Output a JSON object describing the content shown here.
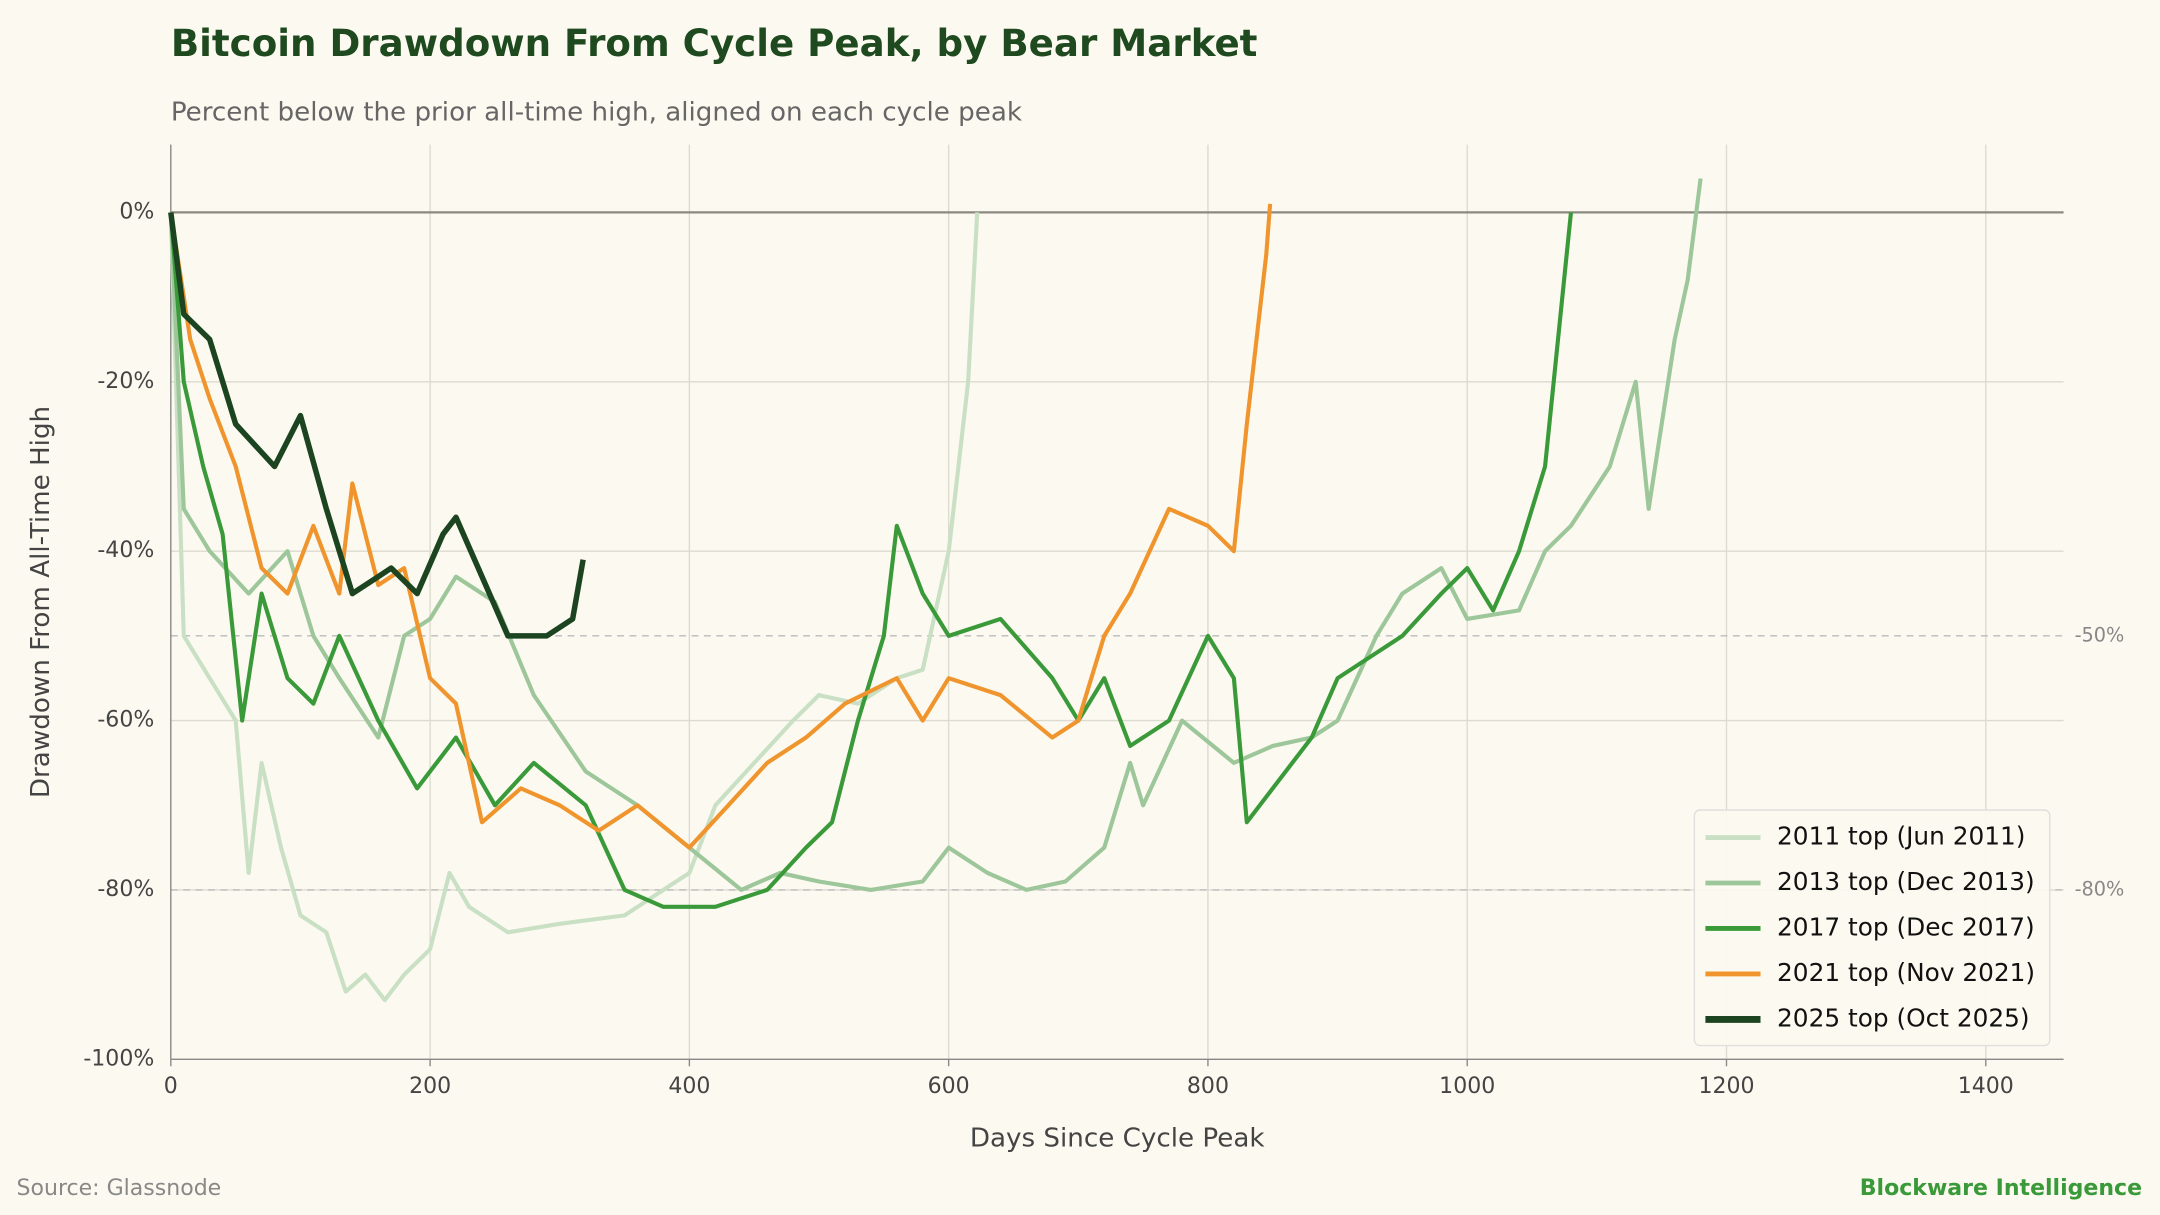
{
  "chart_data": {
    "type": "line",
    "title": "Bitcoin Drawdown From Cycle Peak, by Bear Market",
    "subtitle": "Percent below the prior all-time high, aligned on each cycle peak",
    "xlabel": "Days Since Cycle Peak",
    "ylabel": "Drawdown From All-Time High",
    "source": "Source: Glassnode",
    "brand": "Blockware Intelligence",
    "xlim": [
      0,
      1460
    ],
    "ylim": [
      -100,
      8
    ],
    "xticks": [
      0,
      200,
      400,
      600,
      800,
      1000,
      1200,
      1400
    ],
    "yticks": [
      {
        "value": -100,
        "label": "-100%"
      },
      {
        "value": -80,
        "label": "-80%"
      },
      {
        "value": -60,
        "label": "-60%"
      },
      {
        "value": -40,
        "label": "-40%"
      },
      {
        "value": -20,
        "label": "-20%"
      },
      {
        "value": 0,
        "label": "0%"
      }
    ],
    "grid": true,
    "legend": "lower right",
    "ref_lines": [
      {
        "value": -50,
        "label": "-50%"
      },
      {
        "value": -80,
        "label": "-80%"
      }
    ],
    "series": [
      {
        "name": "2011 top (Jun 2011)",
        "color": "#c9e0c5",
        "x": [
          0,
          10,
          30,
          50,
          60,
          70,
          85,
          100,
          120,
          135,
          150,
          165,
          180,
          200,
          215,
          230,
          260,
          300,
          350,
          380,
          400,
          420,
          450,
          480,
          500,
          530,
          560,
          580,
          600,
          615,
          622
        ],
        "values": [
          0,
          -50,
          -55,
          -60,
          -78,
          -65,
          -75,
          -83,
          -85,
          -92,
          -90,
          -93,
          -90,
          -87,
          -78,
          -82,
          -85,
          -84,
          -83,
          -80,
          -78,
          -70,
          -65,
          -60,
          -57,
          -58,
          -55,
          -54,
          -40,
          -20,
          0
        ]
      },
      {
        "name": "2013 top (Dec 2013)",
        "color": "#9dc79a",
        "x": [
          0,
          10,
          30,
          60,
          90,
          110,
          130,
          160,
          180,
          200,
          220,
          250,
          280,
          320,
          360,
          400,
          440,
          470,
          500,
          540,
          580,
          600,
          630,
          660,
          690,
          720,
          740,
          750,
          780,
          820,
          850,
          880,
          900,
          930,
          950,
          980,
          1000,
          1040,
          1060,
          1080,
          1110,
          1130,
          1140,
          1160,
          1170,
          1180
        ],
        "values": [
          0,
          -35,
          -40,
          -45,
          -40,
          -50,
          -55,
          -62,
          -50,
          -48,
          -43,
          -46,
          -57,
          -66,
          -70,
          -75,
          -80,
          -78,
          -79,
          -80,
          -79,
          -75,
          -78,
          -80,
          -79,
          -75,
          -65,
          -70,
          -60,
          -65,
          -63,
          -62,
          -60,
          -50,
          -45,
          -42,
          -48,
          -47,
          -40,
          -37,
          -30,
          -20,
          -35,
          -15,
          -8,
          4
        ]
      },
      {
        "name": "2017 top (Dec 2017)",
        "color": "#3a9a3a",
        "x": [
          0,
          10,
          25,
          40,
          55,
          70,
          90,
          110,
          130,
          160,
          190,
          220,
          250,
          280,
          320,
          350,
          380,
          420,
          460,
          490,
          510,
          530,
          550,
          560,
          580,
          600,
          640,
          680,
          700,
          720,
          740,
          770,
          800,
          820,
          830,
          850,
          880,
          900,
          930,
          950,
          980,
          1000,
          1020,
          1040,
          1060,
          1070,
          1080
        ],
        "values": [
          0,
          -20,
          -30,
          -38,
          -60,
          -45,
          -55,
          -58,
          -50,
          -60,
          -68,
          -62,
          -70,
          -65,
          -70,
          -80,
          -82,
          -82,
          -80,
          -75,
          -72,
          -60,
          -50,
          -37,
          -45,
          -50,
          -48,
          -55,
          -60,
          -55,
          -63,
          -60,
          -50,
          -55,
          -72,
          -68,
          -62,
          -55,
          -52,
          -50,
          -45,
          -42,
          -47,
          -40,
          -30,
          -15,
          0
        ]
      },
      {
        "name": "2021 top (Nov 2021)",
        "color": "#f0952e",
        "x": [
          0,
          15,
          30,
          50,
          70,
          90,
          110,
          130,
          140,
          160,
          180,
          200,
          220,
          240,
          270,
          300,
          330,
          360,
          400,
          430,
          460,
          490,
          520,
          560,
          580,
          600,
          640,
          680,
          700,
          720,
          740,
          770,
          800,
          820,
          830,
          845,
          848
        ],
        "values": [
          0,
          -15,
          -22,
          -30,
          -42,
          -45,
          -37,
          -45,
          -32,
          -44,
          -42,
          -55,
          -58,
          -72,
          -68,
          -70,
          -73,
          -70,
          -75,
          -70,
          -65,
          -62,
          -58,
          -55,
          -60,
          -55,
          -57,
          -62,
          -60,
          -50,
          -45,
          -35,
          -37,
          -40,
          -25,
          -5,
          1
        ]
      },
      {
        "name": "2025 top (Oct 2025)",
        "color": "#1c4420",
        "x": [
          0,
          10,
          30,
          50,
          80,
          100,
          120,
          140,
          170,
          190,
          210,
          220,
          240,
          260,
          290,
          310,
          318
        ],
        "values": [
          0,
          -12,
          -15,
          -25,
          -30,
          -24,
          -35,
          -45,
          -42,
          -45,
          -38,
          -36,
          -43,
          -50,
          -50,
          -48,
          -41
        ]
      }
    ]
  }
}
